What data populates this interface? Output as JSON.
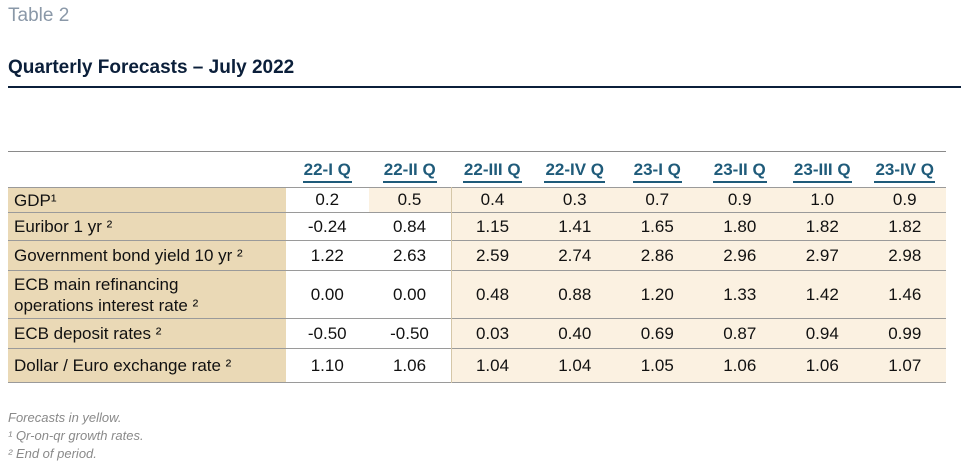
{
  "table_label": "Table 2",
  "title": "Quarterly Forecasts – July 2022",
  "columns": [
    "22-I Q",
    "22-II Q",
    "22-III Q",
    "22-IV Q",
    "23-I Q",
    "23-II Q",
    "23-III Q",
    "23-IV Q"
  ],
  "rows": [
    {
      "label": "GDP¹",
      "values": [
        "0.2",
        "0.5",
        "0.4",
        "0.3",
        "0.7",
        "0.9",
        "1.0",
        "0.9"
      ]
    },
    {
      "label": "Euribor 1 yr ²",
      "values": [
        "-0.24",
        "0.84",
        "1.15",
        "1.41",
        "1.65",
        "1.80",
        "1.82",
        "1.82"
      ]
    },
    {
      "label": "Government bond yield 10 yr ²",
      "values": [
        "1.22",
        "2.63",
        "2.59",
        "2.74",
        "2.86",
        "2.96",
        "2.97",
        "2.98"
      ]
    },
    {
      "label": "ECB main refinancing operations interest rate ²",
      "values": [
        "0.00",
        "0.00",
        "0.48",
        "0.88",
        "1.20",
        "1.33",
        "1.42",
        "1.46"
      ]
    },
    {
      "label": "ECB deposit rates ²",
      "values": [
        "-0.50",
        "-0.50",
        "0.03",
        "0.40",
        "0.69",
        "0.87",
        "0.94",
        "0.99"
      ]
    },
    {
      "label": "Dollar / Euro exchange rate ²",
      "values": [
        "1.10",
        "1.06",
        "1.04",
        "1.04",
        "1.05",
        "1.06",
        "1.06",
        "1.07"
      ]
    }
  ],
  "footnotes": [
    "Forecasts in yellow.",
    "¹ Qr-on-qr growth rates.",
    "² End of period."
  ],
  "colors": {
    "label_bg": "#ead9b6",
    "forecast_bg": "#fbf1e1",
    "header_text": "#1f5b7a",
    "title_text": "#0b1f3a"
  }
}
